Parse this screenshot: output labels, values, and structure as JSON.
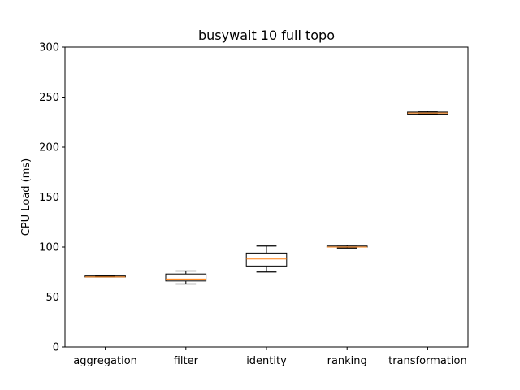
{
  "chart_data": {
    "type": "box",
    "title": "busywait 10 full topo",
    "xlabel": "",
    "ylabel": "CPU Load (ms)",
    "ylim": [
      0,
      300
    ],
    "yticks": [
      0,
      50,
      100,
      150,
      200,
      250,
      300
    ],
    "categories": [
      "aggregation",
      "filter",
      "identity",
      "ranking",
      "transformation"
    ],
    "boxes": [
      {
        "category": "aggregation",
        "whisker_low": 70,
        "q1": 70,
        "median": 70,
        "q3": 71,
        "whisker_high": 71
      },
      {
        "category": "filter",
        "whisker_low": 63,
        "q1": 66,
        "median": 68,
        "q3": 73,
        "whisker_high": 76
      },
      {
        "category": "identity",
        "whisker_low": 75,
        "q1": 81,
        "median": 88,
        "q3": 94,
        "whisker_high": 101
      },
      {
        "category": "ranking",
        "whisker_low": 99,
        "q1": 100,
        "median": 100,
        "q3": 101,
        "whisker_high": 102
      },
      {
        "category": "transformation",
        "whisker_low": 233,
        "q1": 233,
        "median": 234,
        "q3": 235,
        "whisker_high": 236
      }
    ],
    "grid": false,
    "colors": {
      "box": "#000000",
      "median": "#ff7f0e",
      "axis": "#000000"
    }
  }
}
